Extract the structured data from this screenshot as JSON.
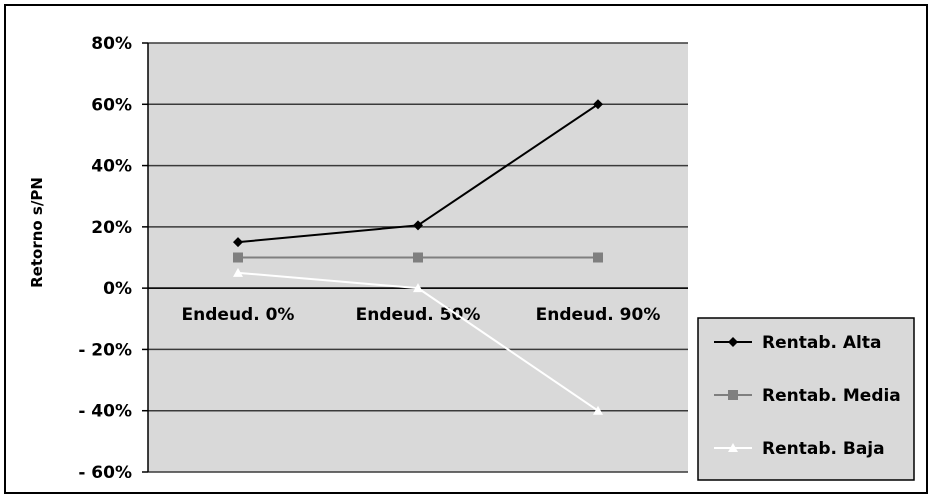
{
  "chart_data": {
    "type": "line",
    "categories": [
      "Endeud. 0%",
      "Endeud. 50%",
      "Endeud. 90%"
    ],
    "series": [
      {
        "name": "Rentab. Alta",
        "values": [
          15,
          20.5,
          60
        ],
        "color": "#000000",
        "marker": "diamond"
      },
      {
        "name": "Rentab. Media",
        "values": [
          10,
          10,
          10
        ],
        "color": "#7f7f7f",
        "marker": "square"
      },
      {
        "name": "Rentab. Baja",
        "values": [
          5,
          0,
          -40
        ],
        "color": "#ffffff",
        "marker": "triangle"
      }
    ],
    "yticks": [
      "80%",
      "60%",
      "40%",
      "20%",
      "0%",
      "- 20%",
      "- 40%",
      "- 60%"
    ],
    "ylabel": "Retorno s/PN",
    "ylim": [
      -60,
      80
    ],
    "grid": true,
    "plot_background": "#d9d9d9",
    "legend_position": "bottom-right"
  }
}
